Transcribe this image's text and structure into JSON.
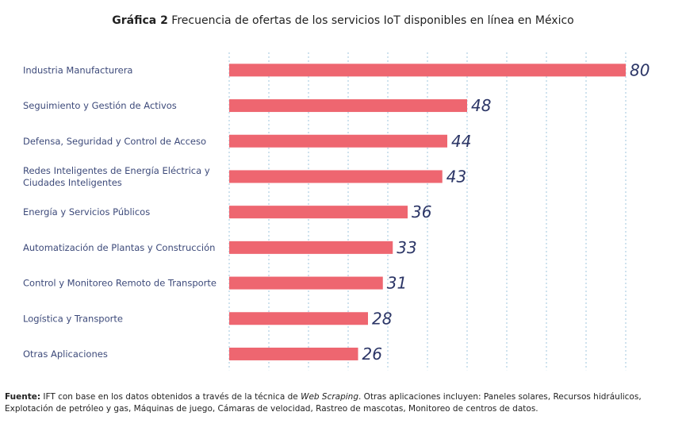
{
  "title": {
    "prefix": "Gráfica 2",
    "text": "Frecuencia de ofertas de los servicios IoT disponibles en línea en México"
  },
  "chart_data": {
    "type": "bar",
    "orientation": "horizontal",
    "categories": [
      [
        "Industria Manufacturera"
      ],
      [
        "Seguimiento y Gestión de Activos"
      ],
      [
        "Defensa, Seguridad y Control de Acceso"
      ],
      [
        "Redes Inteligentes de Energía Eléctrica y",
        "Ciudades Inteligentes"
      ],
      [
        "Energía y Servicios Públicos"
      ],
      [
        "Automatización de Plantas y Construcción"
      ],
      [
        "Control y Monitoreo Remoto de Transporte"
      ],
      [
        "Logística y Transporte"
      ],
      [
        "Otras Aplicaciones"
      ]
    ],
    "values": [
      80,
      48,
      44,
      43,
      36,
      33,
      31,
      28,
      26
    ],
    "xlim": [
      0,
      80
    ],
    "grid": true,
    "bar_color": "#ee6670",
    "value_color": "#2b3566",
    "grid_color": "#9fc4dd"
  },
  "footnote": {
    "label": "Fuente:",
    "text1": "IFT con base en los datos obtenidos a través de la técnica de",
    "italic": "Web Scraping",
    "text2": ". Otras aplicaciones incluyen: Paneles solares, Recursos hidráulicos, Explotación de petróleo y gas, Máquinas de juego, Cámaras de velocidad, Rastreo de mascotas, Monitoreo de centros de datos."
  }
}
